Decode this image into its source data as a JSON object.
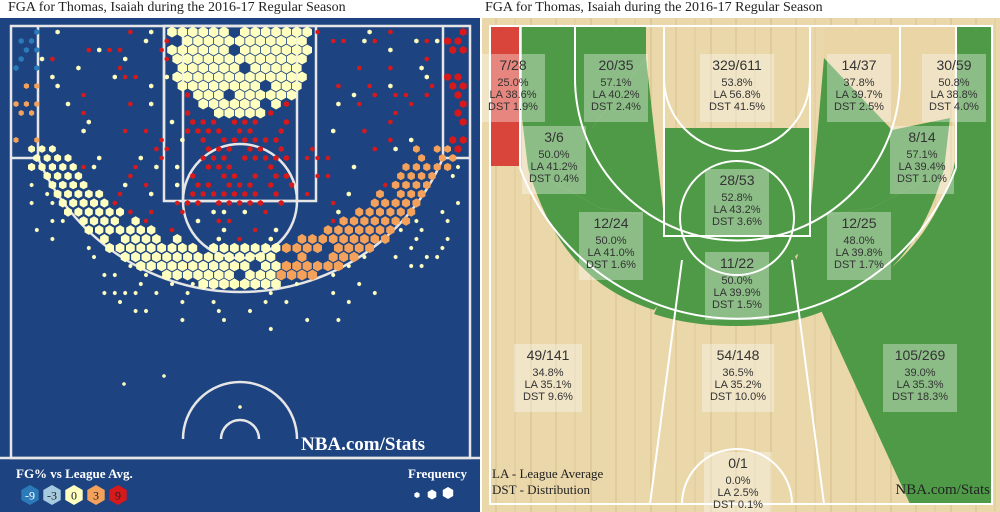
{
  "left_panel": {
    "title": "FGA for Thomas, Isaiah during the 2016-17 Regular Season",
    "watermark": "NBA.com/Stats",
    "legend_title": "FG% vs League Avg.",
    "legend_values": [
      "-9",
      "-3",
      "0",
      "3",
      "9"
    ],
    "legend_colors": [
      "#2b7bba",
      "#a6cbe0",
      "#ffffbf",
      "#f4a25b",
      "#d7191c"
    ],
    "frequency_label": "Frequency",
    "court_color": "#1d4380",
    "line_color": "#e6e6e6"
  },
  "right_panel": {
    "title": "FGA for Thomas, Isaiah during the 2016-17 Regular Season",
    "watermark": "NBA.com/Stats",
    "legend_line1": "LA - League Average",
    "legend_line2": "DST - Distribution",
    "colors": {
      "above": "#d9453a",
      "average": "#e9d5a6",
      "below": "#4f9a47"
    }
  },
  "chart_data": [
    {
      "type": "hexbin-shot-chart",
      "title": "FGA for Thomas, Isaiah during the 2016-17 Regular Season",
      "color_scale": {
        "label": "FG% vs League Avg.",
        "values": [
          -9,
          -3,
          0,
          3,
          9
        ],
        "colors": [
          "#2b7bba",
          "#a6cbe0",
          "#ffffbf",
          "#f4a25b",
          "#d7191c"
        ]
      },
      "size_scale": {
        "label": "Frequency",
        "levels": [
          "low",
          "medium",
          "high"
        ]
      }
    },
    {
      "type": "zone-shot-chart",
      "title": "FGA for Thomas, Isaiah during the 2016-17 Regular Season",
      "zones": [
        {
          "id": "left-corner-3",
          "made_attempts": "7/28",
          "fg_pct": "25.0%",
          "league_avg": "LA 38.6%",
          "distribution": "DST 1.9%",
          "rating": "above"
        },
        {
          "id": "left-baseline-mid",
          "made_attempts": "20/35",
          "fg_pct": "57.1%",
          "league_avg": "LA 40.2%",
          "distribution": "DST 2.4%",
          "rating": "below"
        },
        {
          "id": "restricted-area",
          "made_attempts": "329/611",
          "fg_pct": "53.8%",
          "league_avg": "LA 56.8%",
          "distribution": "DST 41.5%",
          "rating": "average"
        },
        {
          "id": "right-baseline-mid",
          "made_attempts": "14/37",
          "fg_pct": "37.8%",
          "league_avg": "LA 39.7%",
          "distribution": "DST 2.5%",
          "rating": "average"
        },
        {
          "id": "right-corner-3",
          "made_attempts": "30/59",
          "fg_pct": "50.8%",
          "league_avg": "LA 38.8%",
          "distribution": "DST 4.0%",
          "rating": "below"
        },
        {
          "id": "left-short-baseline",
          "made_attempts": "3/6",
          "fg_pct": "50.0%",
          "league_avg": "LA 41.2%",
          "distribution": "DST 0.4%",
          "rating": "below"
        },
        {
          "id": "right-short-baseline",
          "made_attempts": "8/14",
          "fg_pct": "57.1%",
          "league_avg": "LA 39.4%",
          "distribution": "DST 1.0%",
          "rating": "below"
        },
        {
          "id": "paint-non-ra",
          "made_attempts": "28/53",
          "fg_pct": "52.8%",
          "league_avg": "LA 43.2%",
          "distribution": "DST 3.6%",
          "rating": "below"
        },
        {
          "id": "left-wing-mid",
          "made_attempts": "12/24",
          "fg_pct": "50.0%",
          "league_avg": "LA 41.0%",
          "distribution": "DST 1.6%",
          "rating": "below"
        },
        {
          "id": "right-wing-mid",
          "made_attempts": "12/25",
          "fg_pct": "48.0%",
          "league_avg": "LA 39.8%",
          "distribution": "DST 1.7%",
          "rating": "below"
        },
        {
          "id": "top-key-mid",
          "made_attempts": "11/22",
          "fg_pct": "50.0%",
          "league_avg": "LA 39.9%",
          "distribution": "DST 1.5%",
          "rating": "below"
        },
        {
          "id": "left-wing-3",
          "made_attempts": "49/141",
          "fg_pct": "34.8%",
          "league_avg": "LA 35.1%",
          "distribution": "DST 9.6%",
          "rating": "average"
        },
        {
          "id": "top-key-3",
          "made_attempts": "54/148",
          "fg_pct": "36.5%",
          "league_avg": "LA 35.2%",
          "distribution": "DST 10.0%",
          "rating": "average"
        },
        {
          "id": "right-wing-3",
          "made_attempts": "105/269",
          "fg_pct": "39.0%",
          "league_avg": "LA 35.3%",
          "distribution": "DST 18.3%",
          "rating": "below"
        },
        {
          "id": "backcourt",
          "made_attempts": "0/1",
          "fg_pct": "0.0%",
          "league_avg": "LA 2.5%",
          "distribution": "DST 0.1%",
          "rating": "average"
        }
      ]
    }
  ]
}
